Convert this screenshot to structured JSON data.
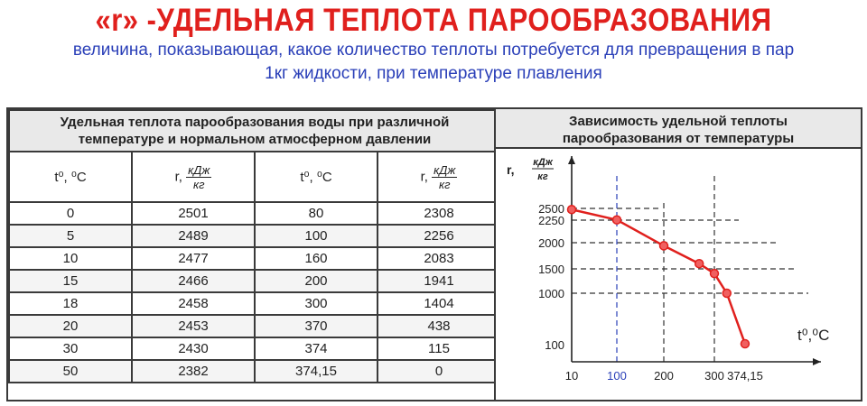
{
  "header": {
    "title": "«r» -УДЕЛЬНАЯ ТЕПЛОТА ПАРООБРАЗОВАНИЯ",
    "subtitle_line1": "величина, показывающая, какое количество теплоты потребуется для превращения в пар",
    "subtitle_line2": "1кг жидкости, при температуре плавления"
  },
  "table": {
    "title_line1": "Удельная теплота парообразования воды при различной",
    "title_line2": "температуре и нормальном атмосферном давлении",
    "col_t_label": "t⁰, ⁰C",
    "col_r_prefix": "r,",
    "col_r_unit_num": "кДж",
    "col_r_unit_den": "кг",
    "rows": [
      {
        "t1": "0",
        "r1": "2501",
        "t2": "80",
        "r2": "2308"
      },
      {
        "t1": "5",
        "r1": "2489",
        "t2": "100",
        "r2": "2256"
      },
      {
        "t1": "10",
        "r1": "2477",
        "t2": "160",
        "r2": "2083"
      },
      {
        "t1": "15",
        "r1": "2466",
        "t2": "200",
        "r2": "1941"
      },
      {
        "t1": "18",
        "r1": "2458",
        "t2": "300",
        "r2": "1404"
      },
      {
        "t1": "20",
        "r1": "2453",
        "t2": "370",
        "r2": "438"
      },
      {
        "t1": "30",
        "r1": "2430",
        "t2": "374",
        "r2": "115"
      },
      {
        "t1": "50",
        "r1": "2382",
        "t2": "374,15",
        "r2": "0"
      }
    ]
  },
  "chart": {
    "title_line1": "Зависимость удельной теплоты",
    "title_line2": "парообразования от температуры",
    "ylabel_prefix": "r,",
    "ylabel_unit_num": "кДж",
    "ylabel_unit_den": "кг",
    "xlabel": "t⁰,⁰C",
    "line_color": "#e0201d",
    "highlight_color": "#2a3fb8"
  },
  "chart_data": {
    "type": "line",
    "x_ticks": [
      "10",
      "100",
      "200",
      "300",
      "374,15"
    ],
    "y_ticks": [
      "100",
      "1000",
      "1500",
      "2000",
      "2250",
      "2500"
    ],
    "highlight_x_tick": "100",
    "points": [
      {
        "x": 10,
        "y": 2477
      },
      {
        "x": 100,
        "y": 2256
      },
      {
        "x": 200,
        "y": 1941
      },
      {
        "x": 270,
        "y": 1600
      },
      {
        "x": 300,
        "y": 1404
      },
      {
        "x": 330,
        "y": 1000
      },
      {
        "x": 374,
        "y": 115
      }
    ]
  }
}
